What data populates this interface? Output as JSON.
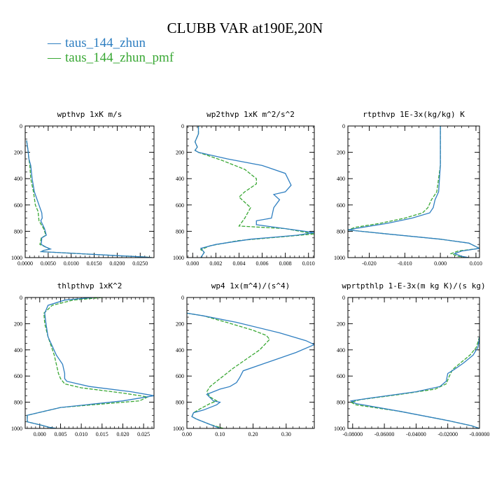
{
  "title": "CLUBB VAR at190E,20N",
  "legend": [
    {
      "label": "taus_144_zhun",
      "color": "#2f7fc1"
    },
    {
      "label": "taus_144_zhun_pmf",
      "color": "#3aa835"
    }
  ],
  "chart_data": [
    {
      "type": "line",
      "title": "wpthvp   1xK m/s",
      "xlim": [
        0,
        0.028
      ],
      "ylim": [
        1000,
        0
      ],
      "y_inverted": true,
      "xticks": [
        0,
        0.005,
        0.01,
        0.015,
        0.02,
        0.025
      ],
      "xticklabels": [
        "0.0000",
        "0.0050",
        "0.0100",
        "0.0150",
        "0.0200",
        "0.0250"
      ],
      "yticks": [
        0,
        200,
        400,
        600,
        800,
        1000
      ],
      "series": [
        {
          "name": "taus_144_zhun",
          "x": [
            0.0003,
            0.0006,
            0.0008,
            0.0012,
            0.0015,
            0.002,
            0.003,
            0.0036,
            0.0037,
            0.0034,
            0.0042,
            0.0046,
            0.0036,
            0.0035,
            0.0045,
            0.0055,
            0.004,
            0.0035,
            0.02,
            0.026,
            0.0275
          ],
          "y": [
            110,
            180,
            250,
            300,
            400,
            500,
            600,
            660,
            700,
            720,
            780,
            830,
            850,
            900,
            920,
            935,
            945,
            955,
            985,
            995,
            1000
          ]
        },
        {
          "name": "taus_144_zhun_pmf",
          "x": [
            0.0003,
            0.0006,
            0.0008,
            0.001,
            0.0012,
            0.0018,
            0.0022,
            0.0028,
            0.003,
            0.004,
            0.0045,
            0.0035,
            0.0032,
            0.0045,
            0.0055,
            0.004,
            0.0035,
            0.02,
            0.026,
            0.0275
          ],
          "y": [
            110,
            180,
            250,
            300,
            400,
            500,
            600,
            650,
            720,
            780,
            830,
            850,
            900,
            920,
            935,
            945,
            955,
            985,
            995,
            1000
          ]
        }
      ]
    },
    {
      "type": "line",
      "title": "wp2thvp   1xK m^2/s^2",
      "xlim": [
        -0.0005,
        0.0105
      ],
      "ylim": [
        1000,
        0
      ],
      "y_inverted": true,
      "xticks": [
        0,
        0.002,
        0.004,
        0.006,
        0.008,
        0.01
      ],
      "xticklabels": [
        "0.000",
        "0.002",
        "0.004",
        "0.006",
        "0.008",
        "0.010"
      ],
      "yticks": [
        0,
        200,
        400,
        600,
        800,
        1000
      ],
      "series": [
        {
          "name": "taus_144_zhun",
          "x": [
            0.0005,
            0.0005,
            0.0002,
            0.0004,
            0.0002,
            0.0005,
            0.003,
            0.006,
            0.008,
            0.0085,
            0.008,
            0.007,
            0.0075,
            0.007,
            0.0068,
            0.0055,
            0.0055,
            0.008,
            0.0105,
            0.009,
            0.005,
            0.002,
            0.0007,
            0.001,
            0.0007
          ],
          "y": [
            0,
            60,
            120,
            160,
            185,
            200,
            250,
            300,
            360,
            450,
            500,
            520,
            560,
            620,
            700,
            720,
            750,
            780,
            810,
            830,
            860,
            900,
            930,
            960,
            1000
          ]
        },
        {
          "name": "taus_144_zhun_pmf",
          "x": [
            0.0005,
            0.0005,
            0.0002,
            0.0004,
            0.0002,
            0.0005,
            0.0025,
            0.0045,
            0.0055,
            0.0055,
            0.0045,
            0.004,
            0.0045,
            0.005,
            0.0045,
            0.004,
            0.008,
            0.0105,
            0.008,
            0.004,
            0.0015,
            0.0007,
            0.001,
            0.0007
          ],
          "y": [
            0,
            60,
            120,
            160,
            185,
            200,
            260,
            330,
            400,
            440,
            500,
            540,
            580,
            620,
            700,
            760,
            780,
            820,
            840,
            870,
            910,
            940,
            960,
            1000
          ]
        }
      ]
    },
    {
      "type": "line",
      "title": "rtpthvp   1E-3x(kg/kg) K",
      "xlim": [
        -0.026,
        0.011
      ],
      "ylim": [
        1000,
        0
      ],
      "y_inverted": true,
      "xticks": [
        -0.02,
        -0.01,
        0,
        0.01
      ],
      "xticklabels": [
        "-0.020",
        "-0.010",
        "0.000",
        "0.010"
      ],
      "yticks": [
        0,
        200,
        400,
        600,
        800,
        1000
      ],
      "series": [
        {
          "name": "taus_144_zhun",
          "x": [
            0,
            0,
            -0.0005,
            -0.0015,
            -0.002,
            -0.003,
            -0.008,
            -0.015,
            -0.022,
            -0.026,
            -0.015,
            0.0,
            0.008,
            0.011,
            0.006,
            0.004,
            0.006,
            0.008
          ],
          "y": [
            0,
            300,
            500,
            560,
            620,
            660,
            700,
            740,
            770,
            790,
            820,
            860,
            890,
            930,
            950,
            970,
            990,
            1000
          ]
        },
        {
          "name": "taus_144_zhun_pmf",
          "x": [
            0,
            0,
            -0.001,
            -0.0025,
            -0.0035,
            -0.005,
            -0.01,
            -0.017,
            -0.024,
            -0.026,
            -0.015,
            0.0,
            0.008,
            0.011,
            0.005,
            0.003,
            0.005,
            0.008
          ],
          "y": [
            0,
            300,
            500,
            560,
            620,
            660,
            700,
            740,
            770,
            790,
            820,
            860,
            890,
            930,
            950,
            970,
            990,
            1000
          ]
        }
      ]
    },
    {
      "type": "line",
      "title": "thlpthvp   1xK^2",
      "xlim": [
        -0.0035,
        0.0275
      ],
      "ylim": [
        1000,
        0
      ],
      "y_inverted": true,
      "xticks": [
        0,
        0.005,
        0.01,
        0.015,
        0.02,
        0.025
      ],
      "xticklabels": [
        "0.000",
        "0.005",
        "0.010",
        "0.015",
        "0.020",
        "0.025"
      ],
      "yticks": [
        0,
        200,
        400,
        600,
        800,
        1000
      ],
      "series": [
        {
          "name": "taus_144_zhun",
          "x": [
            0.013,
            0.006,
            0.002,
            0.0012,
            0.0015,
            0.002,
            0.004,
            0.0055,
            0.006,
            0.006,
            0.0065,
            0.012,
            0.022,
            0.0275,
            0.02,
            0.005,
            -0.003,
            -0.003,
            0.001,
            0.002,
            0.004
          ],
          "y": [
            0,
            20,
            60,
            120,
            200,
            300,
            440,
            510,
            580,
            620,
            640,
            680,
            720,
            750,
            790,
            840,
            900,
            950,
            980,
            990,
            1000
          ]
        },
        {
          "name": "taus_144_zhun_pmf",
          "x": [
            0.015,
            0.008,
            0.003,
            0.001,
            0.0012,
            0.002,
            0.0035,
            0.004,
            0.0045,
            0.005,
            0.006,
            0.01,
            0.02,
            0.026,
            0.024,
            0.005,
            -0.003,
            -0.003,
            0.001,
            0.002,
            0.004
          ],
          "y": [
            0,
            20,
            60,
            120,
            200,
            300,
            440,
            510,
            580,
            620,
            660,
            690,
            730,
            760,
            790,
            840,
            900,
            950,
            980,
            990,
            1000
          ]
        }
      ]
    },
    {
      "type": "line",
      "title": "wp4   1x(m^4)/(s^4)",
      "xlim": [
        0,
        0.385
      ],
      "ylim": [
        1000,
        0
      ],
      "y_inverted": true,
      "xticks": [
        0,
        0.1,
        0.2,
        0.3
      ],
      "xticklabels": [
        "0.00",
        "0.10",
        "0.20",
        "0.30"
      ],
      "yticks": [
        0,
        200,
        400,
        600,
        800,
        1000
      ],
      "series": [
        {
          "name": "taus_144_zhun",
          "x": [
            0.0,
            0.05,
            0.15,
            0.28,
            0.36,
            0.385,
            0.33,
            0.25,
            0.17,
            0.16,
            0.15,
            0.13,
            0.1,
            0.06,
            0.08,
            0.1,
            0.09,
            0.05,
            0.02,
            0.015,
            0.03,
            0.07,
            0.1
          ],
          "y": [
            120,
            140,
            190,
            270,
            330,
            360,
            420,
            490,
            560,
            610,
            650,
            680,
            700,
            740,
            790,
            800,
            820,
            860,
            880,
            910,
            930,
            970,
            1000
          ]
        },
        {
          "name": "taus_144_zhun_pmf",
          "x": [
            0.0,
            0.05,
            0.12,
            0.2,
            0.24,
            0.25,
            0.22,
            0.18,
            0.14,
            0.1,
            0.07,
            0.06,
            0.07,
            0.09,
            0.07,
            0.04,
            0.02,
            0.015,
            0.03,
            0.07,
            0.11
          ],
          "y": [
            120,
            140,
            190,
            250,
            290,
            320,
            400,
            470,
            540,
            620,
            680,
            720,
            760,
            790,
            810,
            850,
            880,
            910,
            930,
            970,
            1000
          ]
        }
      ]
    },
    {
      "type": "line",
      "title": "wprtpthlp   1-E-3x(m kg K)/(s kg)",
      "xlim": [
        -0.083,
        0.0
      ],
      "ylim": [
        1000,
        0
      ],
      "y_inverted": true,
      "xticks": [
        -0.08,
        -0.06,
        -0.04,
        -0.02,
        0.0
      ],
      "xticklabels": [
        "-0.08000",
        "-0.06000",
        "-0.04000",
        "-0.02000",
        "-0.00000"
      ],
      "yticks": [
        0,
        200,
        400,
        600,
        800,
        1000
      ],
      "series": [
        {
          "name": "taus_144_zhun",
          "x": [
            0,
            -0.001,
            -0.004,
            -0.01,
            -0.016,
            -0.02,
            -0.021,
            -0.025,
            -0.04,
            -0.07,
            -0.081,
            -0.078,
            -0.05,
            -0.02,
            -0.005,
            0.0
          ],
          "y": [
            300,
            380,
            440,
            500,
            550,
            580,
            640,
            680,
            720,
            770,
            790,
            810,
            870,
            940,
            980,
            1000
          ]
        },
        {
          "name": "taus_144_zhun_pmf",
          "x": [
            0,
            -0.002,
            -0.006,
            -0.012,
            -0.017,
            -0.019,
            -0.021,
            -0.028,
            -0.05,
            -0.075,
            -0.081,
            -0.078,
            -0.05,
            -0.02,
            -0.005,
            0.0
          ],
          "y": [
            300,
            380,
            440,
            500,
            550,
            600,
            660,
            700,
            740,
            780,
            800,
            820,
            870,
            940,
            980,
            1000
          ]
        }
      ]
    }
  ]
}
